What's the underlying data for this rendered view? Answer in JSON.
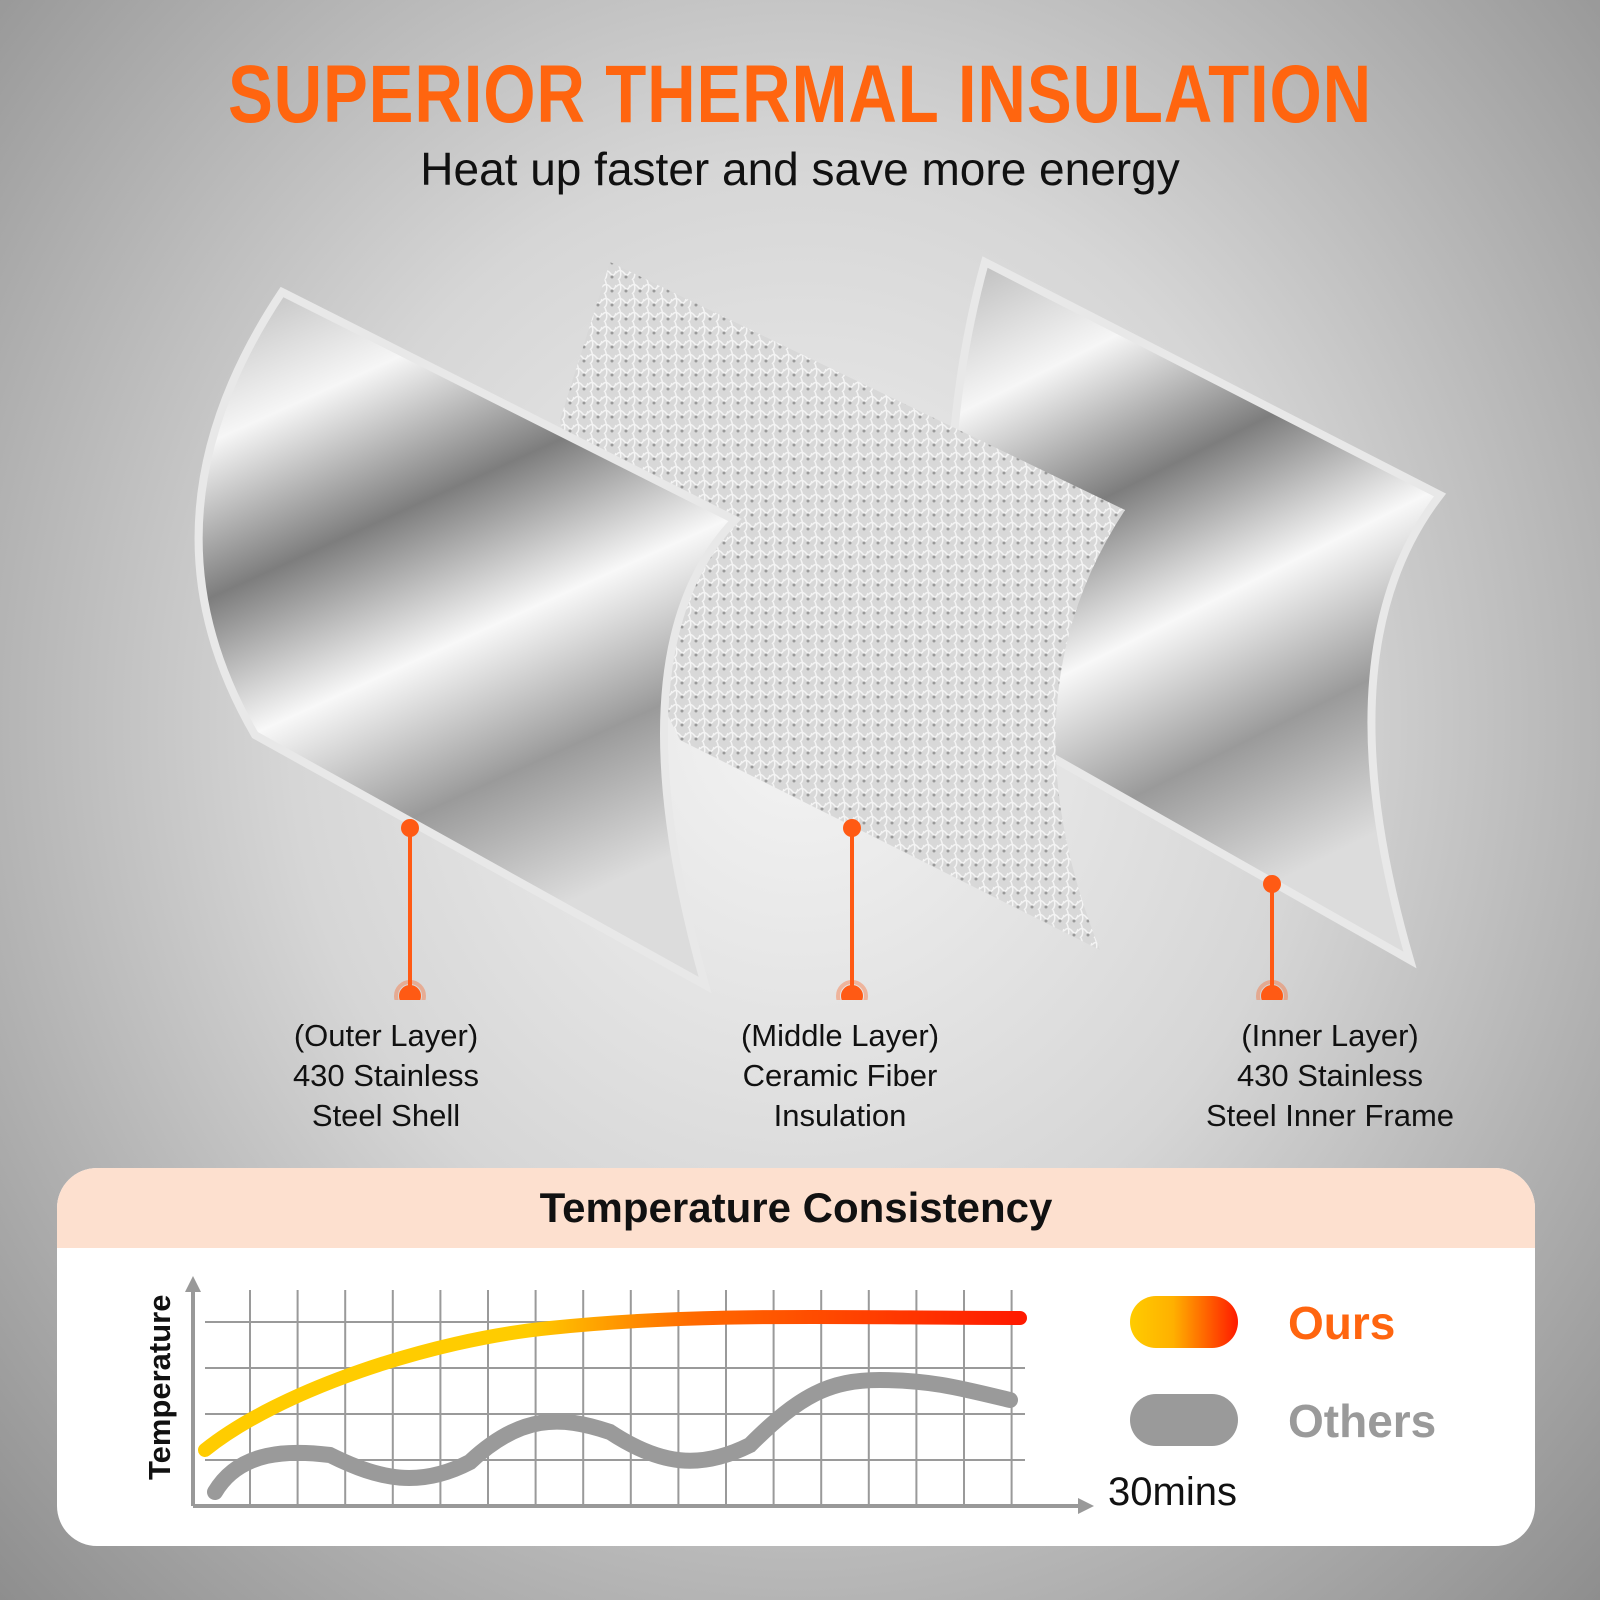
{
  "header": {
    "title": "SUPERIOR THERMAL INSULATION",
    "subtitle": "Heat up faster and save more energy"
  },
  "layers": [
    {
      "line1": "(Outer Layer)",
      "line2": "430 Stainless",
      "line3": "Steel Shell"
    },
    {
      "line1": "(Middle Layer)",
      "line2": "Ceramic Fiber",
      "line3": "Insulation"
    },
    {
      "line1": "(Inner Layer)",
      "line2": "430 Stainless",
      "line3": "Steel Inner Frame"
    }
  ],
  "colors": {
    "accent": "#ff650f",
    "card_header": "#fde0cf",
    "ours_start": "#ffcc00",
    "ours_end": "#ff1a00",
    "others": "#9a9a9a"
  },
  "chart": {
    "title": "Temperature Consistency",
    "ylabel": "Temperature",
    "xlabel": "30mins",
    "legend": [
      {
        "label": "Ours",
        "color": "#ff650f"
      },
      {
        "label": "Others",
        "color": "#9a9a9a"
      }
    ]
  }
}
